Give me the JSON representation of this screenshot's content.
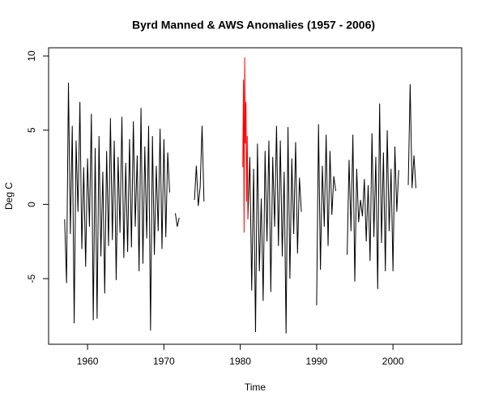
{
  "chart_data": {
    "type": "line",
    "title": "Byrd Manned & AWS Anomalies (1957 - 2006)",
    "x_label": "Time",
    "y_label": "Deg C",
    "xlim": [
      1954.9,
      2009.0
    ],
    "xticks": [
      1960,
      1970,
      1980,
      1990,
      2000
    ],
    "ylim": [
      -9.42,
      10.55
    ],
    "yticks": [
      -5,
      0,
      5,
      10
    ],
    "grid": false,
    "series": [
      {
        "color": "#000000",
        "x": [
          1957,
          1957.25,
          1957.5,
          1957.75,
          1958,
          1958.25,
          1958.5,
          1958.75,
          1959,
          1959.25,
          1959.5,
          1959.75,
          1960,
          1960.25,
          1960.5,
          1960.75,
          1961,
          1961.25,
          1961.5,
          1961.75,
          1962,
          1962.25,
          1962.5,
          1962.75,
          1963,
          1963.25,
          1963.5,
          1963.75,
          1964,
          1964.25,
          1964.5,
          1964.75,
          1965,
          1965.25,
          1965.5,
          1965.75,
          1966,
          1966.25,
          1966.5,
          1966.75,
          1967,
          1967.25,
          1967.5,
          1967.75,
          1968,
          1968.25,
          1968.5,
          1968.75,
          1969,
          1969.25,
          1969.5,
          1969.75,
          1970,
          1970.25,
          1970.5,
          1970.75,
          1971,
          1971.25,
          1971.5,
          1971.75,
          1972,
          1972.25,
          1972.5,
          1972.75,
          1973,
          1973.25,
          1973.5,
          1973.75,
          1974,
          1974.25,
          1974.5,
          1974.75,
          1975,
          1975.25,
          1975.5,
          1975.75,
          1976,
          1976.25,
          1976.5,
          1976.75,
          1977,
          1977.25,
          1977.5,
          1977.75,
          1978,
          1978.25,
          1978.5,
          1978.75,
          1979,
          1979.25,
          1979.5,
          1979.75,
          1980,
          1980.25,
          1980.5,
          1980.75,
          1981,
          1981.25,
          1981.5,
          1981.75,
          1982,
          1982.25,
          1982.5,
          1982.75,
          1983,
          1983.25,
          1983.5,
          1983.75,
          1984,
          1984.25,
          1984.5,
          1984.75,
          1985,
          1985.25,
          1985.5,
          1985.75,
          1986,
          1986.25,
          1986.5,
          1986.75,
          1987,
          1987.25,
          1987.5,
          1987.75,
          1988,
          1988.25,
          1988.5,
          1988.75,
          1989,
          1989.25,
          1989.5,
          1989.75,
          1990,
          1990.25,
          1990.5,
          1990.75,
          1991,
          1991.25,
          1991.5,
          1991.75,
          1992,
          1992.25,
          1992.5,
          1992.75,
          1993,
          1993.25,
          1993.5,
          1993.75,
          1994,
          1994.25,
          1994.5,
          1994.75,
          1995,
          1995.25,
          1995.5,
          1995.75,
          1996,
          1996.25,
          1996.5,
          1996.75,
          1997,
          1997.25,
          1997.5,
          1997.75,
          1998,
          1998.25,
          1998.5,
          1998.75,
          1999,
          1999.25,
          1999.5,
          1999.75,
          2000,
          2000.25,
          2000.5,
          2000.75,
          2001,
          2001.25,
          2001.5,
          2001.75,
          2002,
          2002.25,
          2002.5,
          2002.75,
          2003
        ],
        "values": [
          -1,
          -5.3,
          8.2,
          -2,
          5.3,
          -8,
          4.3,
          -0.5,
          6.9,
          -3,
          2.5,
          -4.2,
          3.1,
          -1.5,
          6.1,
          -7.8,
          3.8,
          -7.7,
          4.6,
          -3.5,
          2.2,
          -6,
          3.6,
          -2.8,
          5.8,
          -2.4,
          4.3,
          -5.1,
          3.2,
          -1.9,
          5.9,
          -3.6,
          2.8,
          -3.2,
          4.4,
          -2.9,
          5.6,
          -1.5,
          3.3,
          -4.5,
          6.5,
          -4,
          3.9,
          -2.3,
          5.3,
          -8.5,
          4.6,
          -3.4,
          2.6,
          -1.8,
          5.1,
          -3,
          4.4,
          -2.2,
          3.5,
          0.8,
          null,
          null,
          -0.6,
          -1.5,
          -0.9,
          null,
          null,
          null,
          null,
          null,
          null,
          null,
          0.3,
          2.6,
          -0.1,
          1.2,
          5.3,
          0.2,
          null,
          null,
          null,
          null,
          null,
          null,
          null,
          null,
          null,
          null,
          null,
          null,
          null,
          null,
          null,
          null,
          null,
          null,
          null,
          null,
          null,
          null,
          -1,
          3.2,
          -5.8,
          2.4,
          -8.6,
          4.1,
          -4.5,
          0.4,
          -6.5,
          3.6,
          -2.5,
          4.3,
          -5.9,
          3.2,
          -1.5,
          5.3,
          -2.8,
          4.3,
          -3.5,
          2.2,
          -8.7,
          5.2,
          -5,
          3.1,
          -2,
          4.2,
          -3.3,
          1.8,
          -0.5,
          null,
          null,
          null,
          null,
          null,
          null,
          null,
          -6.8,
          5.4,
          -4.4,
          2.6,
          -1.5,
          4.7,
          -2.8,
          3.6,
          -0.7,
          1.9,
          0.9,
          null,
          null,
          null,
          null,
          null,
          -3.4,
          3,
          -1.8,
          4.7,
          -5.2,
          2.4,
          -1.2,
          0.3,
          -0.8,
          1.7,
          -2.5,
          1.3,
          -3.8,
          4.8,
          -2.2,
          3.2,
          -5.7,
          6.8,
          -2.6,
          3.5,
          -4.5,
          5,
          -1.8,
          2.4,
          -4.5,
          3.9,
          -0.5,
          2.3,
          null,
          null,
          null,
          null,
          1.3,
          8.1,
          1.1,
          3.3,
          1.1
        ]
      },
      {
        "color": "#ff0000",
        "x": [
          1980.33,
          1980.42,
          1980.5,
          1980.58,
          1980.67,
          1980.75,
          1980.83,
          1980.92,
          1981
        ],
        "values": [
          2.5,
          8.4,
          -1.9,
          9.9,
          4.1,
          6.9,
          0.2,
          4.6,
          -1
        ]
      }
    ]
  }
}
